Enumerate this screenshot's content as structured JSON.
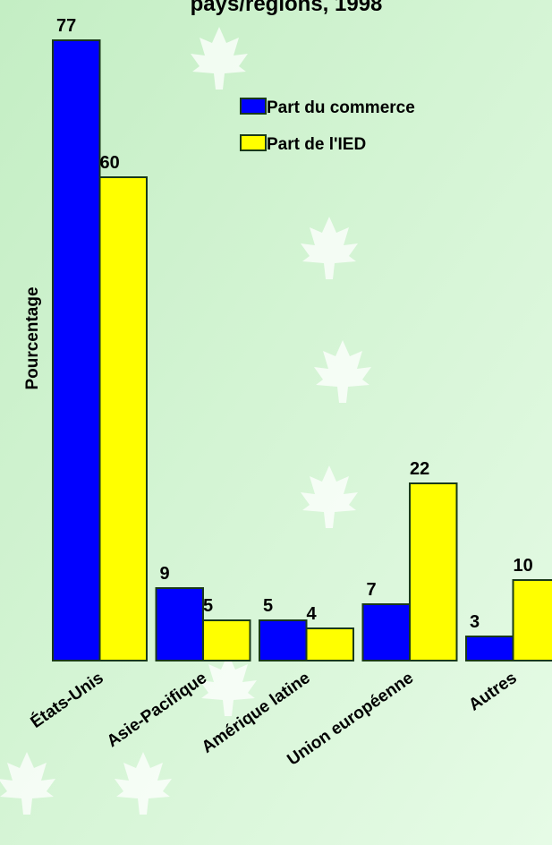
{
  "chart_data": {
    "type": "bar",
    "title": "pays/régions, 1998",
    "y_label": "Pourcentage",
    "categories": [
      "États-Unis",
      "Asie-Pacifique",
      "Amérique latine",
      "Union européenne",
      "Autres"
    ],
    "series": [
      {
        "name": "Part du commerce",
        "color": "#0000ff",
        "values": [
          77,
          9,
          5,
          7,
          3
        ]
      },
      {
        "name": "Part de l'IED",
        "color": "#ffff00",
        "values": [
          60,
          5,
          4,
          22,
          10
        ]
      }
    ]
  }
}
